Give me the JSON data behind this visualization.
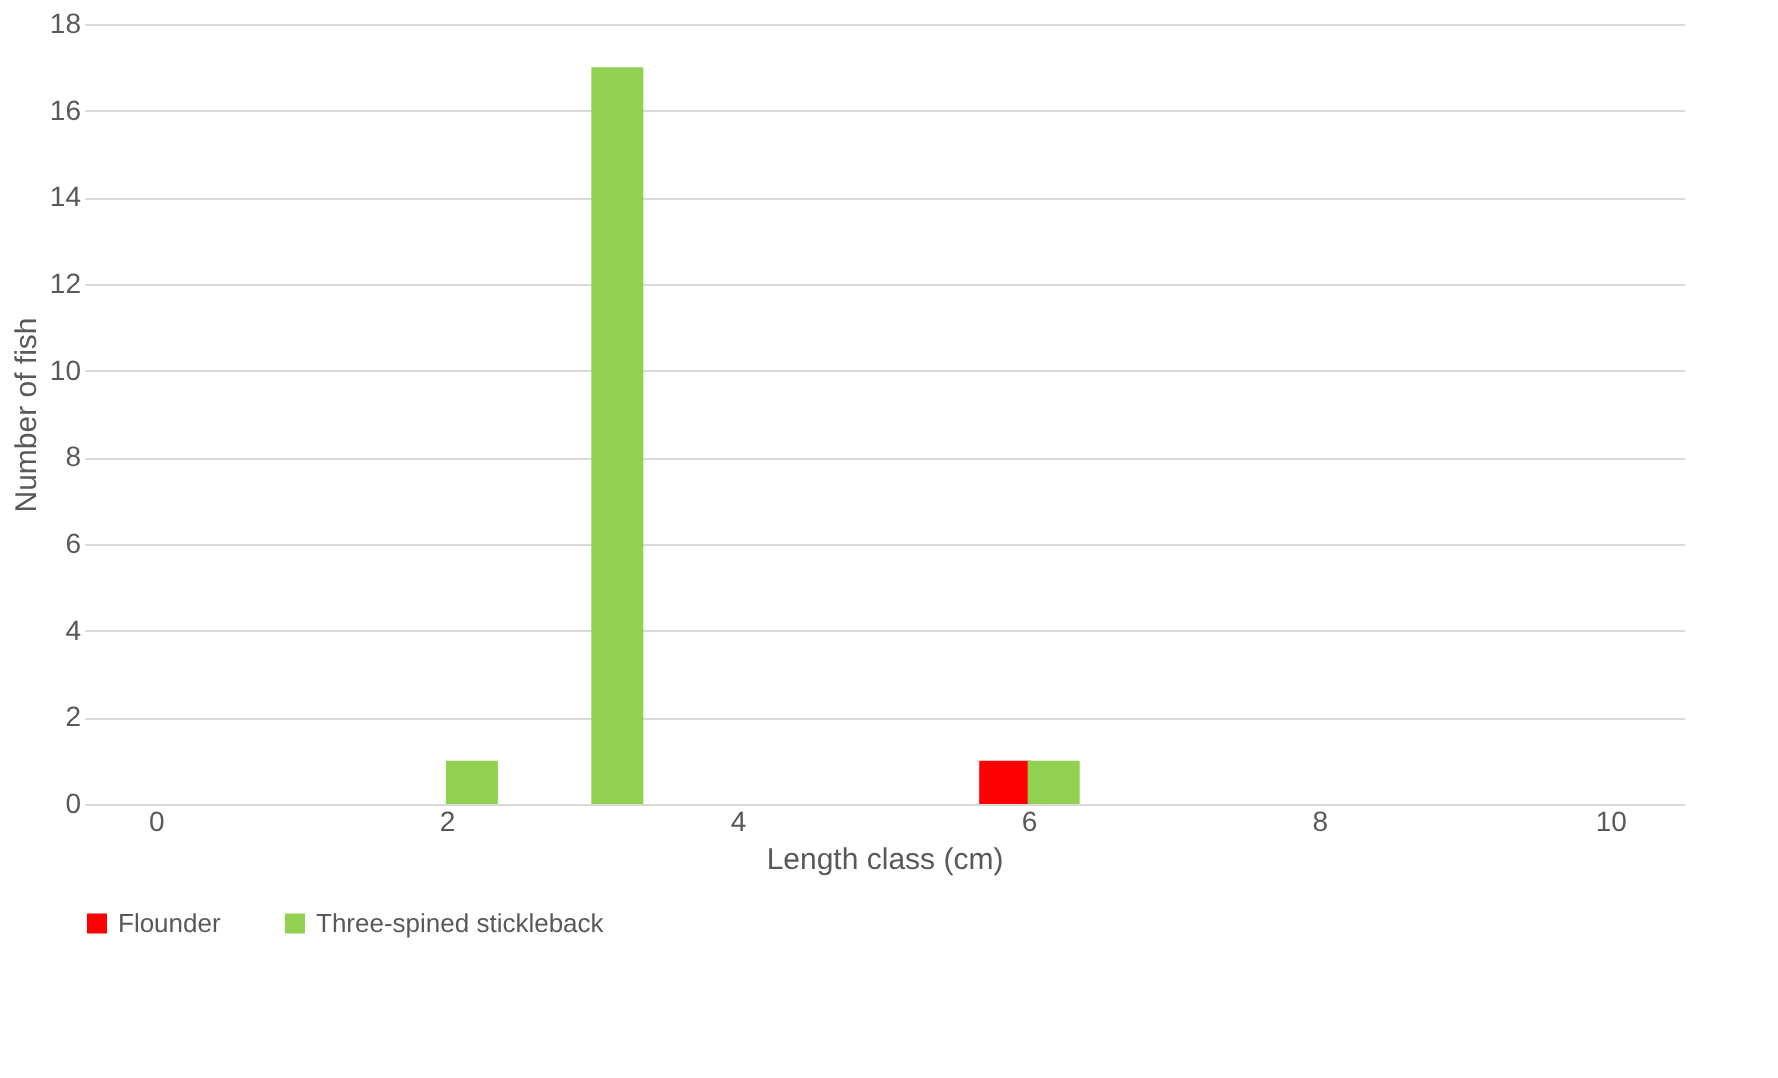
{
  "chart_data": {
    "type": "bar",
    "xlabel": "Length class (cm)",
    "ylabel": "Number of fish",
    "categories": [
      "0",
      null,
      "2",
      null,
      "4",
      null,
      "6",
      null,
      "8",
      null,
      "10"
    ],
    "series": [
      {
        "name": "Flounder",
        "color": "#ff0000",
        "values": [
          0,
          0,
          0,
          0,
          0,
          0,
          1,
          0,
          0,
          0,
          0
        ]
      },
      {
        "name": "Three-spined stickleback",
        "color": "#92d050",
        "values": [
          0,
          0,
          1,
          17,
          0,
          0,
          1,
          0,
          0,
          0,
          0
        ]
      }
    ],
    "ylim": [
      0,
      18
    ],
    "yticks": [
      0,
      2,
      4,
      6,
      8,
      10,
      12,
      14,
      16,
      18
    ],
    "grid": "y",
    "legend": "bottom"
  }
}
